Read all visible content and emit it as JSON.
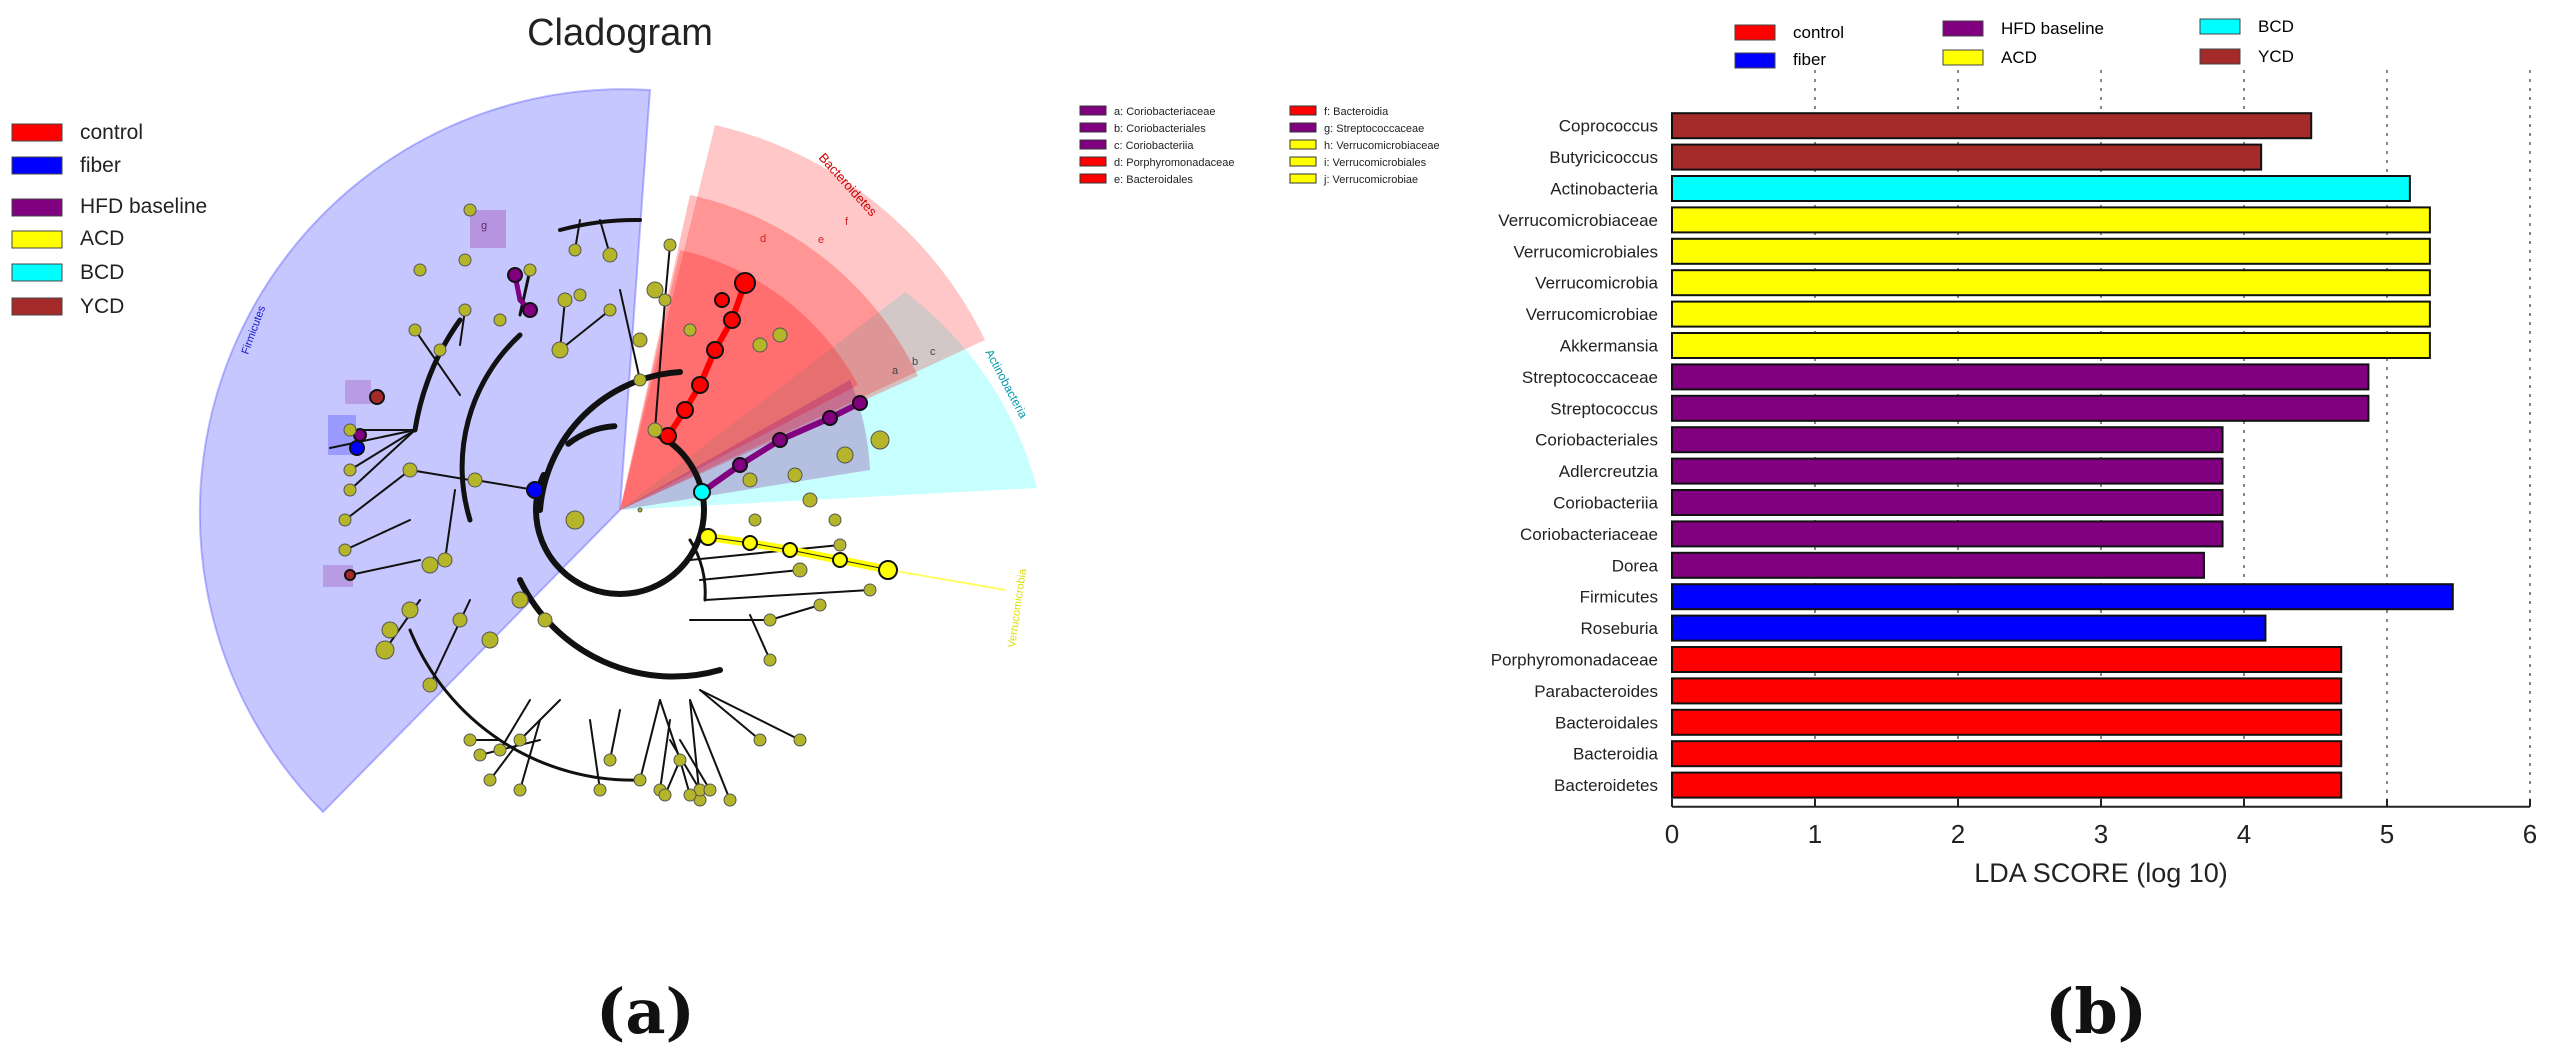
{
  "figure": {
    "panel_a_label": "(a)",
    "panel_b_label": "(b)"
  },
  "cladogram": {
    "title": "Cladogram",
    "legend": [
      {
        "label": "control",
        "color": "#ff0000"
      },
      {
        "label": "fiber",
        "color": "#0000ff"
      },
      {
        "label": "HFD baseline",
        "color": "#800080"
      },
      {
        "label": "ACD",
        "color": "#ffff00"
      },
      {
        "label": "BCD",
        "color": "#00ffff"
      },
      {
        "label": "YCD",
        "color": "#a52a2a"
      }
    ],
    "key": [
      {
        "code": "a: Coriobacteriaceae",
        "color": "#800080"
      },
      {
        "code": "b: Coriobacteriales",
        "color": "#800080"
      },
      {
        "code": "c: Coriobacteriia",
        "color": "#800080"
      },
      {
        "code": "d: Porphyromonadaceae",
        "color": "#ff0000"
      },
      {
        "code": "e: Bacteroidales",
        "color": "#ff0000"
      },
      {
        "code": "f: Bacteroidia",
        "color": "#ff0000"
      },
      {
        "code": "g: Streptococcaceae",
        "color": "#800080"
      },
      {
        "code": "h: Verrucomicrobiaceae",
        "color": "#ffff00"
      },
      {
        "code": "i: Verrucomicrobiales",
        "color": "#ffff00"
      },
      {
        "code": "j: Verrucomicrobiae",
        "color": "#ffff00"
      }
    ],
    "clade_labels": {
      "firmicutes": "Firmicutes",
      "bacteroidetes": "Bacteroidetes",
      "actinobacteria": "Actinobacteria",
      "verrucomicrobia": "Verrucomicrobia",
      "sector_letters": [
        "f",
        "e",
        "d",
        "c",
        "b",
        "a",
        "g"
      ]
    }
  },
  "chart_data": {
    "type": "bar",
    "orientation": "horizontal",
    "title": "",
    "xlabel": "LDA SCORE (log 10)",
    "ylabel": "",
    "xlim": [
      0,
      6
    ],
    "xticks": [
      0,
      1,
      2,
      3,
      4,
      5,
      6
    ],
    "grid": "vertical dotted",
    "legend": [
      {
        "label": "control",
        "color": "#ff0000"
      },
      {
        "label": "fiber",
        "color": "#0000ff"
      },
      {
        "label": "HFD baseline",
        "color": "#800080"
      },
      {
        "label": "ACD",
        "color": "#ffff00"
      },
      {
        "label": "BCD",
        "color": "#00ffff"
      },
      {
        "label": "YCD",
        "color": "#a52a2a"
      }
    ],
    "bars": [
      {
        "label": "Coprococcus",
        "value": 4.47,
        "group": "YCD",
        "color": "#a52a2a"
      },
      {
        "label": "Butyricicoccus",
        "value": 4.12,
        "group": "YCD",
        "color": "#a52a2a"
      },
      {
        "label": "Actinobacteria",
        "value": 5.16,
        "group": "BCD",
        "color": "#00ffff"
      },
      {
        "label": "Verrucomicrobiaceae",
        "value": 5.3,
        "group": "ACD",
        "color": "#ffff00"
      },
      {
        "label": "Verrucomicrobiales",
        "value": 5.3,
        "group": "ACD",
        "color": "#ffff00"
      },
      {
        "label": "Verrucomicrobia",
        "value": 5.3,
        "group": "ACD",
        "color": "#ffff00"
      },
      {
        "label": "Verrucomicrobiae",
        "value": 5.3,
        "group": "ACD",
        "color": "#ffff00"
      },
      {
        "label": "Akkermansia",
        "value": 5.3,
        "group": "ACD",
        "color": "#ffff00"
      },
      {
        "label": "Streptococcaceae",
        "value": 4.87,
        "group": "HFD baseline",
        "color": "#800080"
      },
      {
        "label": "Streptococcus",
        "value": 4.87,
        "group": "HFD baseline",
        "color": "#800080"
      },
      {
        "label": "Coriobacteriales",
        "value": 3.85,
        "group": "HFD baseline",
        "color": "#800080"
      },
      {
        "label": "Adlercreutzia",
        "value": 3.85,
        "group": "HFD baseline",
        "color": "#800080"
      },
      {
        "label": "Coriobacteriia",
        "value": 3.85,
        "group": "HFD baseline",
        "color": "#800080"
      },
      {
        "label": "Coriobacteriaceae",
        "value": 3.85,
        "group": "HFD baseline",
        "color": "#800080"
      },
      {
        "label": "Dorea",
        "value": 3.72,
        "group": "HFD baseline",
        "color": "#800080"
      },
      {
        "label": "Firmicutes",
        "value": 5.46,
        "group": "fiber",
        "color": "#0000ff"
      },
      {
        "label": "Roseburia",
        "value": 4.15,
        "group": "fiber",
        "color": "#0000ff"
      },
      {
        "label": "Porphyromonadaceae",
        "value": 4.68,
        "group": "control",
        "color": "#ff0000"
      },
      {
        "label": "Parabacteroides",
        "value": 4.68,
        "group": "control",
        "color": "#ff0000"
      },
      {
        "label": "Bacteroidales",
        "value": 4.68,
        "group": "control",
        "color": "#ff0000"
      },
      {
        "label": "Bacteroidia",
        "value": 4.68,
        "group": "control",
        "color": "#ff0000"
      },
      {
        "label": "Bacteroidetes",
        "value": 4.68,
        "group": "control",
        "color": "#ff0000"
      }
    ]
  }
}
